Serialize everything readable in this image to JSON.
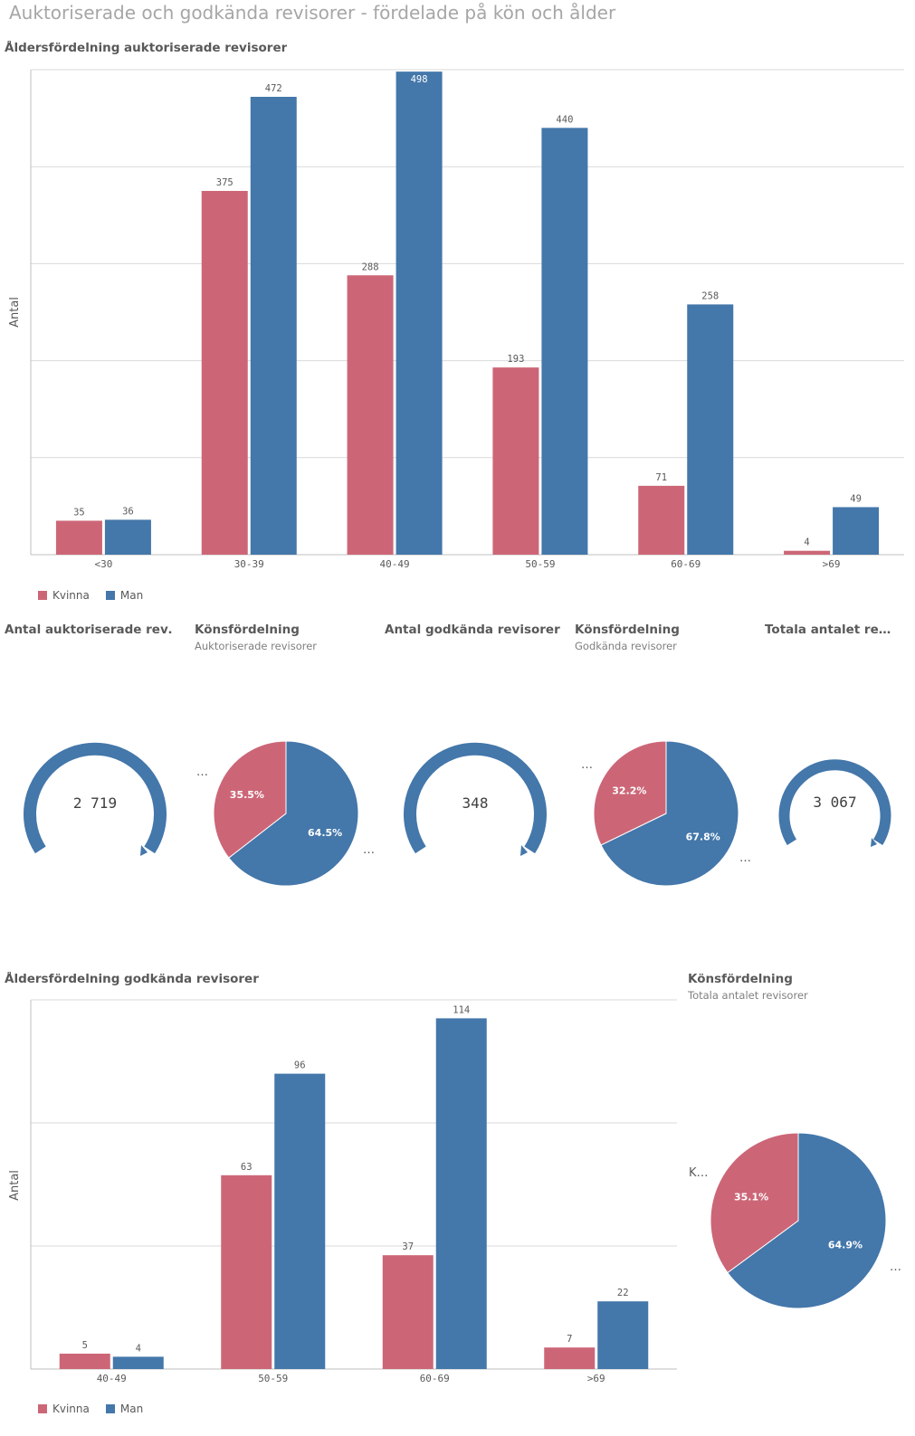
{
  "page_title": "Auktoriserade och godkända revisorer - fördelade på kön och ålder",
  "colors": {
    "kvinna": "#cc6677",
    "man": "#4477aa"
  },
  "chart1": {
    "title": "Åldersfördelning auktoriserade revisorer",
    "ylabel": "Antal",
    "legend": [
      "Kvinna",
      "Man"
    ]
  },
  "chart2": {
    "title": "Åldersfördelning godkända revisorer",
    "ylabel": "Antal",
    "legend": [
      "Kvinna",
      "Man"
    ]
  },
  "kpi1": {
    "title": "Antal auktoriserade rev…",
    "value": "2 719"
  },
  "pie1": {
    "title": "Könsfördelning",
    "subtitle": "Auktoriserade revisorer",
    "more": "…"
  },
  "kpi2": {
    "title": "Antal godkända revisorer",
    "value": "348"
  },
  "pie2": {
    "title": "Könsfördelning",
    "subtitle": "Godkända revisorer",
    "more": "…"
  },
  "kpi3": {
    "title": "Totala antalet re…",
    "value": "3 067"
  },
  "pie3": {
    "title": "Könsfördelning",
    "subtitle": "Totala antalet revisorer",
    "side_label": "K…",
    "more": "…"
  },
  "chart_data": [
    {
      "type": "bar",
      "title": "Åldersfördelning auktoriserade revisorer",
      "ylabel": "Antal",
      "categories": [
        "<30",
        "30-39",
        "40-49",
        "50-59",
        "60-69",
        ">69"
      ],
      "series": [
        {
          "name": "Kvinna",
          "values": [
            35,
            375,
            288,
            193,
            71,
            4
          ]
        },
        {
          "name": "Man",
          "values": [
            36,
            472,
            498,
            440,
            258,
            49
          ]
        }
      ],
      "ylim": [
        0,
        500
      ],
      "grid": true,
      "legend": "bottom-left"
    },
    {
      "type": "bar",
      "title": "Åldersfördelning godkända revisorer",
      "ylabel": "Antal",
      "categories": [
        "40-49",
        "50-59",
        "60-69",
        ">69"
      ],
      "series": [
        {
          "name": "Kvinna",
          "values": [
            5,
            63,
            37,
            7
          ]
        },
        {
          "name": "Man",
          "values": [
            4,
            96,
            114,
            22
          ]
        }
      ],
      "ylim": [
        0,
        120
      ],
      "grid": true,
      "legend": "bottom-left"
    },
    {
      "type": "pie",
      "title": "Könsfördelning",
      "subtitle": "Auktoriserade revisorer",
      "labels": [
        "Kvinna",
        "Man"
      ],
      "values": [
        35.5,
        64.5
      ],
      "value_labels": [
        "35.5%",
        "64.5%"
      ]
    },
    {
      "type": "pie",
      "title": "Könsfördelning",
      "subtitle": "Godkända revisorer",
      "labels": [
        "Kvinna",
        "Man"
      ],
      "values": [
        32.2,
        67.8
      ],
      "value_labels": [
        "32.2%",
        "67.8%"
      ]
    },
    {
      "type": "pie",
      "title": "Könsfördelning",
      "subtitle": "Totala antalet revisorer",
      "labels": [
        "Kvinna",
        "Man"
      ],
      "values": [
        35.1,
        64.9
      ],
      "value_labels": [
        "35.1%",
        "64.9%"
      ]
    }
  ]
}
